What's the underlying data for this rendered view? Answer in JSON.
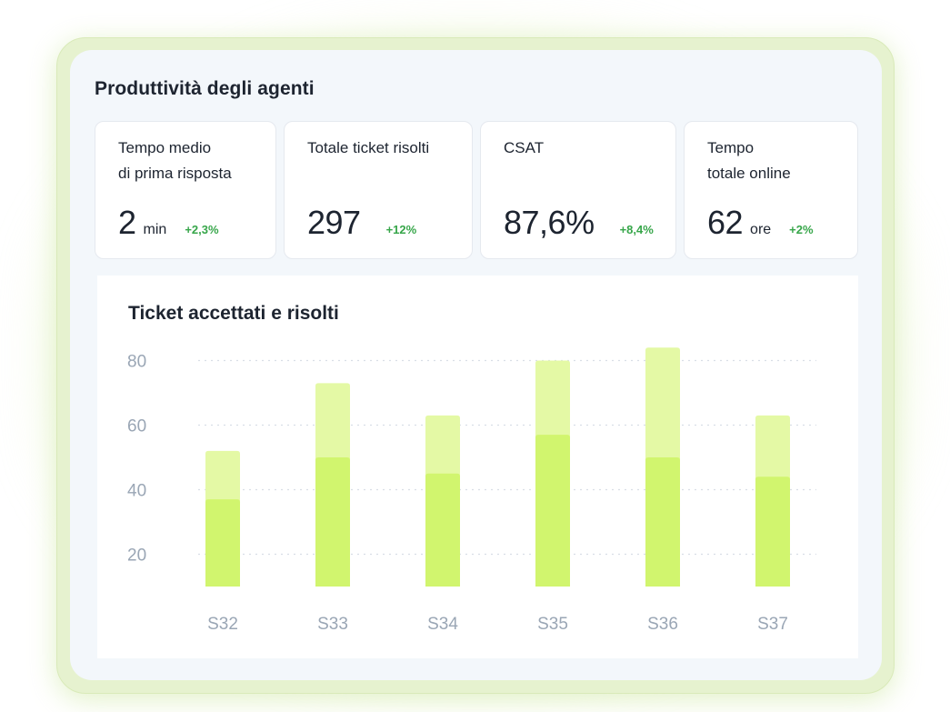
{
  "panel": {
    "title": "Produttività degli agenti"
  },
  "kpis": [
    {
      "label": "Tempo medio\ndi prima risposta",
      "value": "2",
      "unit": "min",
      "delta": "+2,3%"
    },
    {
      "label": "Totale ticket risolti",
      "value": "297",
      "unit": "",
      "delta": "+12%"
    },
    {
      "label": "CSAT",
      "value": "87,6%",
      "unit": "",
      "delta": "+8,4%"
    },
    {
      "label": "Tempo\ntotale online",
      "value": "62",
      "unit": "ore",
      "delta": "+2%"
    }
  ],
  "colors": {
    "accepted": "#e4f9a5",
    "resolved": "#d1f56e",
    "delta_positive": "#37a64a",
    "axis_text": "#9aa6b5",
    "grid": "#d9dee6"
  },
  "chart_data": {
    "type": "bar",
    "title": "Ticket accettati e risolti",
    "categories": [
      "S32",
      "S33",
      "S34",
      "S35",
      "S36",
      "S37"
    ],
    "series": [
      {
        "values": [
          52,
          73,
          63,
          80,
          84,
          63
        ]
      },
      {
        "values": [
          37,
          50,
          45,
          57,
          50,
          44
        ]
      }
    ],
    "overlay": true,
    "yticks": [
      20,
      40,
      60,
      80
    ],
    "ylim": [
      10,
      83
    ],
    "grid": true,
    "legend": "none"
  }
}
